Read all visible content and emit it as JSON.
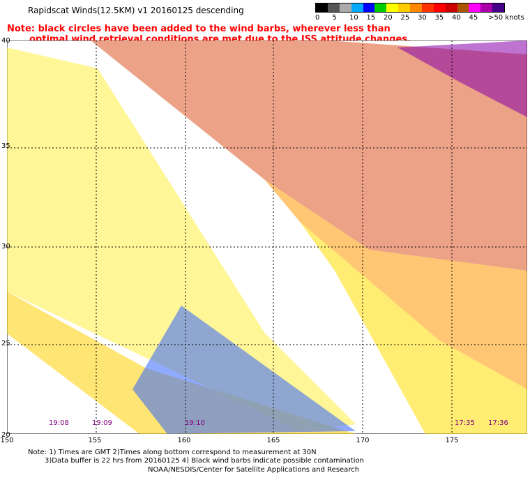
{
  "title": "Rapidscat Winds(12.5KM) v1 20160125 descending",
  "note": {
    "line1": "Note: black circles have been added to the wind barbs, wherever less than",
    "line2": "optimal wind retrieval conditions are met due to the ISS attitude changes."
  },
  "colorscale": {
    "labels": [
      "0",
      "5",
      "10",
      "15",
      "20",
      "25",
      "30",
      "35",
      "40",
      "45",
      ">50 knots"
    ],
    "colors": [
      "#000000",
      "#555555",
      "#aaaaaa",
      "#00aaff",
      "#0000ff",
      "#00cc00",
      "#ffff00",
      "#ffcc00",
      "#ff8800",
      "#ff3300",
      "#ff0000",
      "#cc0000",
      "#aa5500",
      "#ff00ff",
      "#aa00aa",
      "#440088"
    ]
  },
  "axes": {
    "lat_labels": [
      "40",
      "35",
      "30",
      "25",
      "20"
    ],
    "lon_labels": [
      "150",
      "155",
      "160",
      "165",
      "170",
      "175"
    ]
  },
  "times": [
    "19:08",
    "19:09",
    "19:10",
    "17:35",
    "17:36"
  ],
  "footer": {
    "line1": "Note: 1) Times are GMT 2)Times along bottom correspond to measurement at 30N",
    "line2": "3)Data buffer is 22 hrs from 20160125 4) Black wind barbs indicate possible contamination",
    "line3": "NOAA/NESDIS/Center for Satellite Applications and Research"
  }
}
